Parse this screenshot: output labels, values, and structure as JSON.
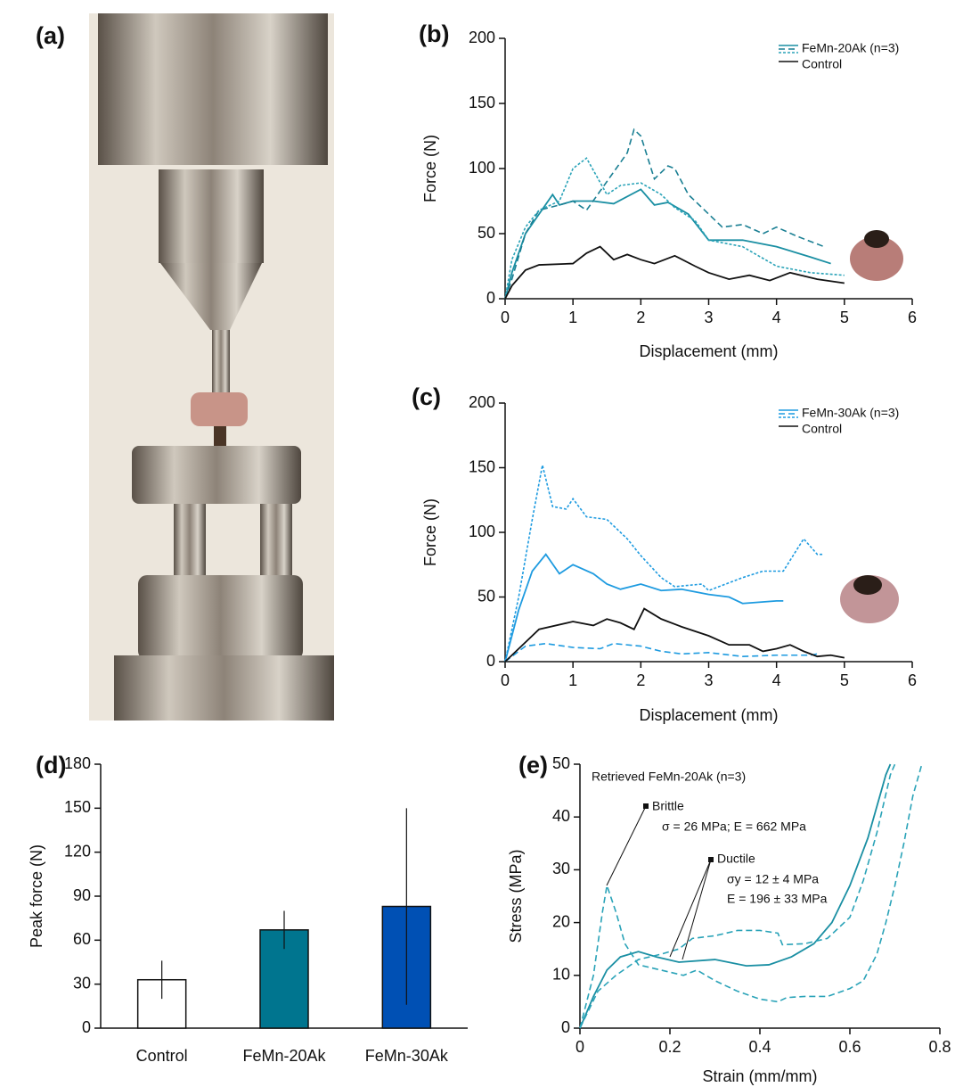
{
  "photo": {
    "label": "(a)"
  },
  "chart_data": [
    {
      "type": "line",
      "label": "(b)",
      "xlabel": "Displacement (mm)",
      "ylabel": "Force (N)",
      "xlim": [
        0,
        6
      ],
      "ylim": [
        0,
        200
      ],
      "xticks": [
        0,
        1,
        2,
        3,
        4,
        5,
        6
      ],
      "yticks": [
        0,
        50,
        100,
        150,
        200
      ],
      "legend": "upper right",
      "series": [
        {
          "name": "FeMn-20Ak (n=3)",
          "color": "#1a8fa3",
          "dash": "solid",
          "x": [
            0,
            0.1,
            0.3,
            0.5,
            0.7,
            0.8,
            1.0,
            1.3,
            1.6,
            2.0,
            2.2,
            2.4,
            2.7,
            3.0,
            3.5,
            4.0,
            4.5,
            4.8
          ],
          "values": [
            0,
            20,
            50,
            65,
            80,
            72,
            75,
            75,
            73,
            84,
            72,
            74,
            65,
            45,
            45,
            40,
            32,
            27
          ]
        },
        {
          "color": "#1a7f93",
          "dash": "dashed",
          "x": [
            0,
            0.1,
            0.3,
            0.5,
            0.8,
            1.0,
            1.2,
            1.5,
            1.8,
            1.9,
            2.0,
            2.2,
            2.4,
            2.5,
            2.7,
            3.0,
            3.2,
            3.5,
            3.8,
            4.0,
            4.3,
            4.7
          ],
          "values": [
            0,
            15,
            50,
            68,
            72,
            75,
            68,
            90,
            112,
            130,
            125,
            92,
            102,
            100,
            80,
            65,
            55,
            57,
            50,
            55,
            48,
            40
          ]
        },
        {
          "color": "#2aa3b8",
          "dash": "dotted",
          "x": [
            0,
            0.1,
            0.3,
            0.5,
            0.8,
            1.0,
            1.2,
            1.5,
            1.7,
            2.0,
            2.3,
            2.5,
            2.8,
            3.0,
            3.5,
            4.0,
            4.5,
            5.0
          ],
          "values": [
            0,
            30,
            55,
            68,
            75,
            100,
            108,
            80,
            87,
            89,
            80,
            70,
            60,
            45,
            40,
            25,
            20,
            18
          ]
        },
        {
          "name": "Control",
          "color": "#111111",
          "dash": "solid",
          "x": [
            0,
            0.1,
            0.3,
            0.5,
            1.0,
            1.2,
            1.4,
            1.6,
            1.8,
            2.0,
            2.2,
            2.5,
            2.8,
            3.0,
            3.3,
            3.6,
            3.9,
            4.2,
            4.6,
            5.0
          ],
          "values": [
            0,
            10,
            22,
            26,
            27,
            35,
            40,
            30,
            34,
            30,
            27,
            33,
            25,
            20,
            15,
            18,
            14,
            20,
            15,
            12
          ]
        }
      ]
    },
    {
      "type": "line",
      "label": "(c)",
      "xlabel": "Displacement (mm)",
      "ylabel": "Force (N)",
      "xlim": [
        0,
        6
      ],
      "ylim": [
        0,
        200
      ],
      "xticks": [
        0,
        1,
        2,
        3,
        4,
        5,
        6
      ],
      "yticks": [
        0,
        50,
        100,
        150,
        200
      ],
      "legend": "upper right",
      "series": [
        {
          "name": "FeMn-30Ak (n=3)",
          "color": "#1e9be0",
          "dash": "solid",
          "x": [
            0,
            0.2,
            0.4,
            0.6,
            0.8,
            1.0,
            1.3,
            1.5,
            1.7,
            2.0,
            2.3,
            2.6,
            3.0,
            3.3,
            3.5,
            4.0,
            4.1
          ],
          "values": [
            0,
            40,
            70,
            83,
            68,
            75,
            68,
            60,
            56,
            60,
            55,
            56,
            52,
            50,
            45,
            47,
            47
          ]
        },
        {
          "color": "#1e9be0",
          "dash": "dashed",
          "x": [
            0,
            0.3,
            0.6,
            1.0,
            1.4,
            1.6,
            2.0,
            2.3,
            2.6,
            3.0,
            3.5,
            4.0,
            4.5,
            4.6
          ],
          "values": [
            0,
            12,
            14,
            11,
            10,
            14,
            12,
            8,
            6,
            7,
            4,
            5,
            5,
            6
          ]
        },
        {
          "color": "#1e9be0",
          "dash": "dotted",
          "x": [
            0,
            0.2,
            0.4,
            0.55,
            0.7,
            0.9,
            1.0,
            1.2,
            1.5,
            1.8,
            2.0,
            2.3,
            2.5,
            2.9,
            3.0,
            3.5,
            3.8,
            4.1,
            4.4,
            4.6,
            4.7
          ],
          "values": [
            0,
            50,
            110,
            152,
            120,
            118,
            126,
            112,
            110,
            95,
            82,
            65,
            58,
            60,
            55,
            65,
            70,
            70,
            95,
            83,
            83
          ]
        },
        {
          "name": "Control",
          "color": "#111111",
          "dash": "solid",
          "x": [
            0,
            0.3,
            0.5,
            1.0,
            1.3,
            1.5,
            1.7,
            1.9,
            2.05,
            2.3,
            2.6,
            3.0,
            3.3,
            3.6,
            3.8,
            4.0,
            4.2,
            4.4,
            4.6,
            4.8,
            5.0
          ],
          "values": [
            0,
            15,
            25,
            31,
            28,
            33,
            30,
            25,
            41,
            33,
            27,
            20,
            13,
            13,
            8,
            10,
            13,
            8,
            4,
            5,
            3
          ]
        }
      ]
    },
    {
      "type": "bar",
      "label": "(d)",
      "ylabel": "Peak force (N)",
      "categories": [
        "Control",
        "FeMn-20Ak",
        "FeMn-30Ak"
      ],
      "values": [
        33,
        67,
        83
      ],
      "errors": [
        13,
        13,
        67
      ],
      "colors": [
        "#ffffff",
        "#00758f",
        "#0050b4"
      ],
      "edgecolor": "#111111",
      "ylim": [
        0,
        180
      ],
      "yticks": [
        0,
        30,
        60,
        90,
        120,
        150,
        180
      ]
    },
    {
      "type": "line",
      "label": "(e)",
      "xlabel": "Strain (mm/mm)",
      "ylabel": "Stress (MPa)",
      "xlim": [
        0,
        0.8
      ],
      "ylim": [
        0,
        50
      ],
      "xticks": [
        0,
        0.2,
        0.4,
        0.6,
        0.8
      ],
      "yticks": [
        0,
        10,
        20,
        30,
        40,
        50
      ],
      "annotations": [
        "Retrieved FeMn-20Ak (n=3)",
        "Brittle",
        "σ = 26 MPa; E = 662 MPa",
        "Ductile",
        "σy = 12 ± 4 MPa",
        "E = 196 ± 33 MPa"
      ],
      "series": [
        {
          "color": "#1a8fa3",
          "dash": "solid",
          "x": [
            0,
            0.03,
            0.06,
            0.09,
            0.13,
            0.17,
            0.22,
            0.3,
            0.37,
            0.42,
            0.47,
            0.52,
            0.56,
            0.6,
            0.64,
            0.68,
            0.69
          ],
          "values": [
            0,
            6,
            11,
            13.5,
            14.5,
            13.5,
            12.5,
            13,
            11.8,
            12,
            13.5,
            16,
            20,
            27,
            36,
            48,
            50
          ]
        },
        {
          "color": "#2aa3b8",
          "dash": "dashed",
          "x": [
            0,
            0.03,
            0.05,
            0.06,
            0.08,
            0.1,
            0.13,
            0.18,
            0.23,
            0.26,
            0.3,
            0.35,
            0.4,
            0.44,
            0.46,
            0.5,
            0.55,
            0.6,
            0.63,
            0.66,
            0.68,
            0.7,
            0.72,
            0.74,
            0.76
          ],
          "values": [
            0,
            10,
            22,
            27,
            22,
            16,
            12,
            11,
            10,
            11,
            9,
            7,
            5.5,
            5,
            5.8,
            6,
            6,
            7.5,
            9,
            14,
            20,
            27,
            35,
            44,
            50
          ]
        },
        {
          "color": "#2aa3b8",
          "dash": "dashed",
          "x": [
            0,
            0.04,
            0.08,
            0.13,
            0.18,
            0.22,
            0.25,
            0.3,
            0.35,
            0.4,
            0.44,
            0.45,
            0.5,
            0.55,
            0.6,
            0.63,
            0.66,
            0.69,
            0.7
          ],
          "values": [
            0,
            7,
            10,
            13,
            14,
            15,
            17,
            17.5,
            18.5,
            18.5,
            18,
            15.8,
            16,
            17,
            21,
            28,
            37,
            48,
            50
          ]
        }
      ]
    }
  ]
}
